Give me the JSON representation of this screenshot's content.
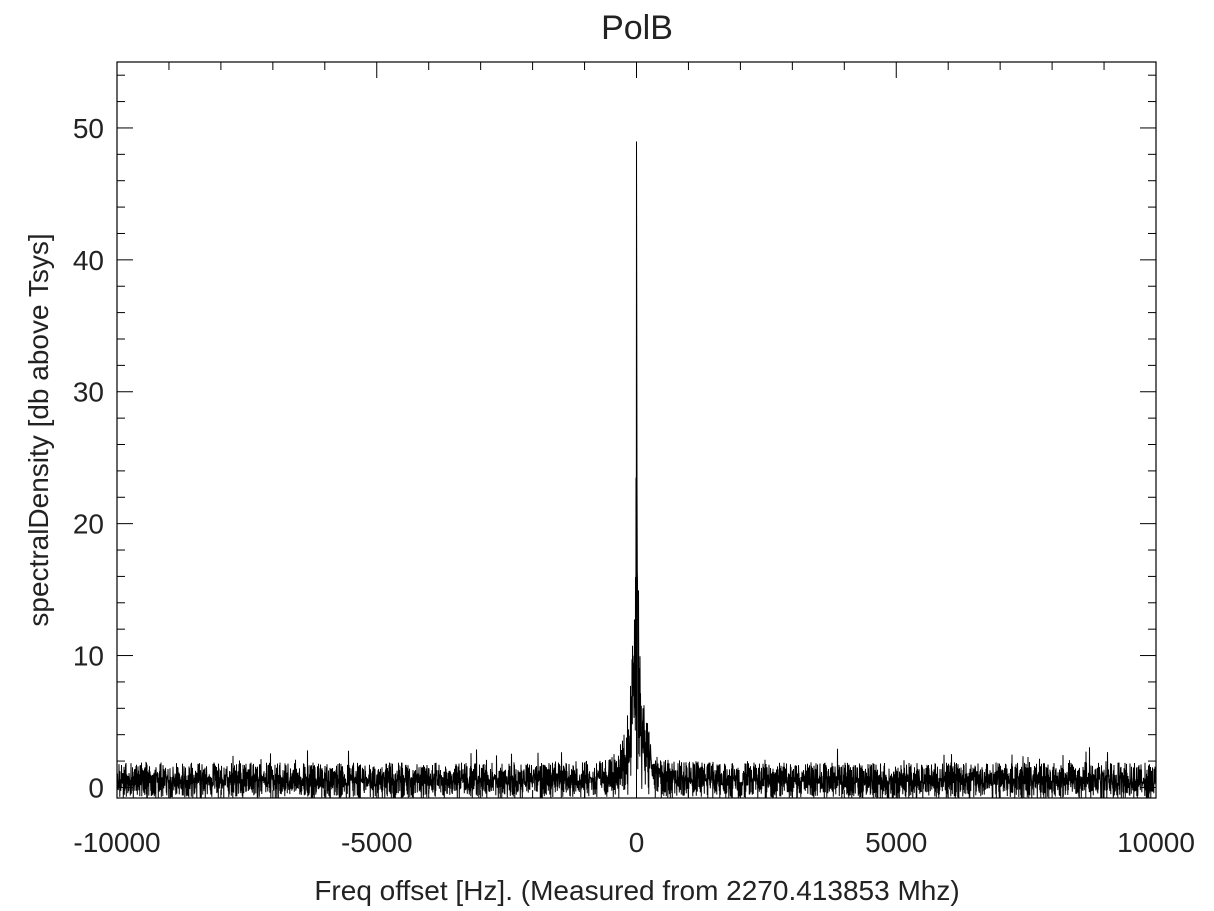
{
  "chart_data": {
    "type": "line",
    "title": "PolB",
    "xlabel": "Freq offset [Hz]. (Measured from 2270.413853 Mhz)",
    "ylabel": "spectralDensity [db above Tsys]",
    "xlim": [
      -10000,
      10000
    ],
    "ylim": [
      -0.8,
      55
    ],
    "x_ticks": [
      -10000,
      -5000,
      0,
      5000,
      10000
    ],
    "x_tick_labels": [
      "-10000",
      "-5000",
      "0",
      "5000",
      "10000"
    ],
    "y_ticks": [
      0,
      10,
      20,
      30,
      40,
      50
    ],
    "y_tick_labels": [
      "0",
      "10",
      "20",
      "30",
      "40",
      "50"
    ],
    "grid": false,
    "legend": "none",
    "line_color": "#000000",
    "series": [
      {
        "x": [
          -10000,
          -8000,
          -6000,
          -4000,
          -2000,
          -1000,
          -600,
          -400,
          -300,
          -200,
          -150,
          -100,
          -60,
          -40,
          -25,
          -15,
          -8,
          -3,
          0,
          3,
          8,
          15,
          25,
          40,
          60,
          100,
          150,
          200,
          300,
          400,
          600,
          1000,
          2000,
          4000,
          6000,
          8000,
          10000
        ],
        "values": [
          1.0,
          1.0,
          1.0,
          1.0,
          1.0,
          1.1,
          1.3,
          1.7,
          2.3,
          3.3,
          4.2,
          6.0,
          8.5,
          10.5,
          13.0,
          18.0,
          25.0,
          38.0,
          48.8,
          38.0,
          25.0,
          18.0,
          13.0,
          10.5,
          8.5,
          6.0,
          4.2,
          3.3,
          2.3,
          1.7,
          1.3,
          1.1,
          1.0,
          1.0,
          1.0,
          1.0,
          1.0
        ]
      }
    ]
  }
}
